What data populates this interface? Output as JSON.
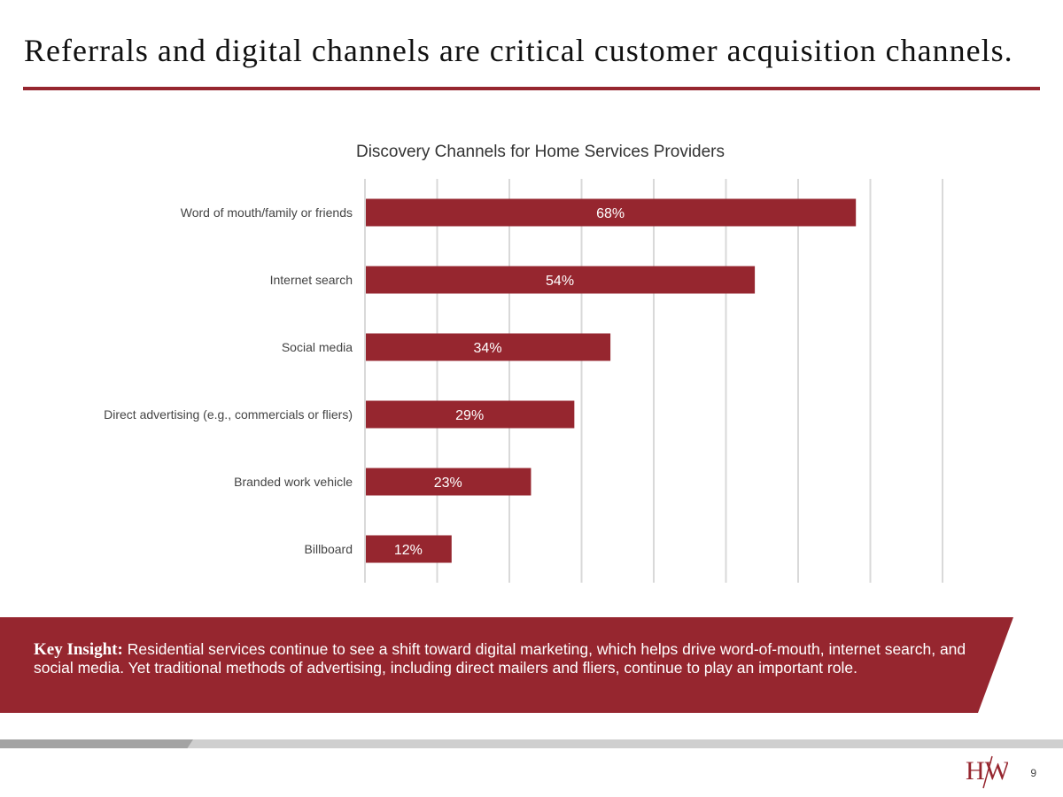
{
  "slide": {
    "title": "Referrals and digital channels are critical customer acquisition channels.",
    "page_number": "9",
    "logo_text": "HW"
  },
  "insight": {
    "label": "Key Insight:",
    "text": "Residential services continue to see a shift toward digital marketing, which helps drive word-of-mouth, internet search, and social media. Yet traditional methods of advertising, including direct mailers and fliers, continue to play an important role."
  },
  "colors": {
    "accent": "#96262f",
    "gridline": "#d9d9d9",
    "footer_light": "#cfcfcf",
    "footer_dark": "#a3a3a3"
  },
  "chart_data": {
    "type": "bar",
    "orientation": "horizontal",
    "title": "Discovery Channels for Home Services Providers",
    "categories": [
      "Word of mouth/family or friends",
      "Internet search",
      "Social media",
      "Direct advertising (e.g., commercials or fliers)",
      "Branded work vehicle",
      "Billboard"
    ],
    "values": [
      68,
      54,
      34,
      29,
      23,
      12
    ],
    "data_labels": [
      "68%",
      "54%",
      "34%",
      "29%",
      "23%",
      "12%"
    ],
    "xlim": [
      0,
      80
    ],
    "gridline_step": 10,
    "grid": true,
    "legend": "none",
    "bar_color": "#96262f"
  }
}
